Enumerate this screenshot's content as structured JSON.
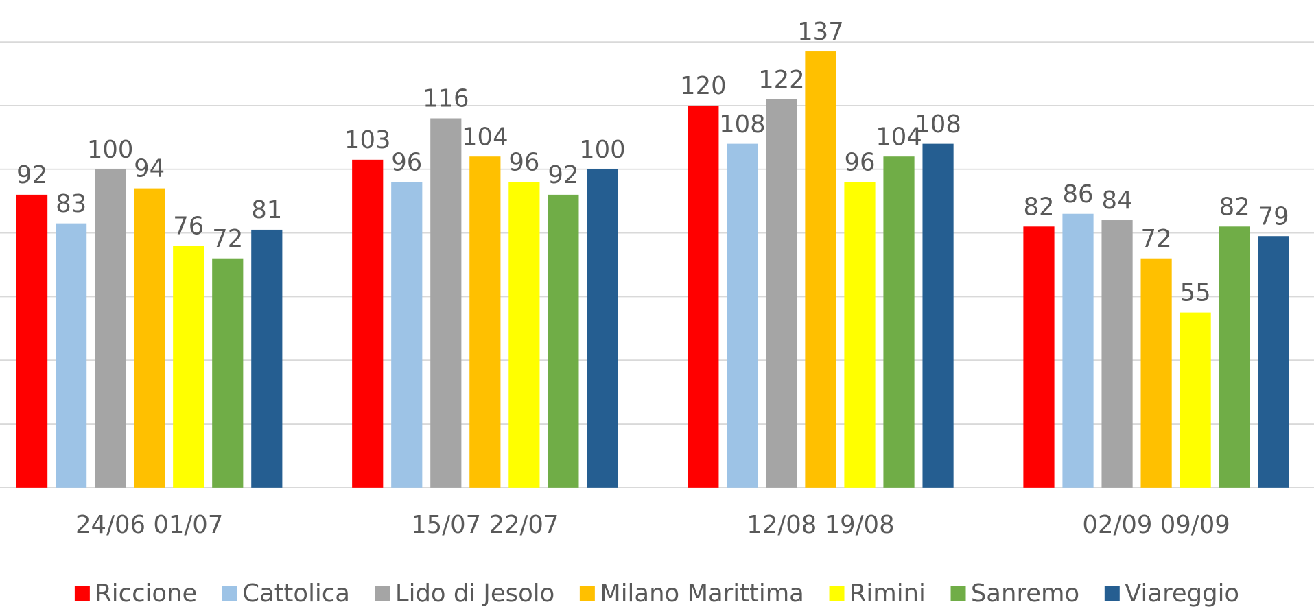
{
  "chart_data": {
    "type": "bar",
    "categories": [
      "24/06 01/07",
      "15/07 22/07",
      "12/08 19/08",
      "02/09 09/09"
    ],
    "series": [
      {
        "name": "Riccione",
        "color": "#ff0000",
        "values": [
          92,
          103,
          120,
          82
        ]
      },
      {
        "name": "Cattolica",
        "color": "#9dc3e6",
        "values": [
          83,
          96,
          108,
          86
        ]
      },
      {
        "name": "Lido di Jesolo",
        "color": "#a5a5a5",
        "values": [
          100,
          116,
          122,
          84
        ]
      },
      {
        "name": "Milano Marittima",
        "color": "#ffc000",
        "values": [
          94,
          104,
          137,
          72
        ]
      },
      {
        "name": "Rimini",
        "color": "#ffff00",
        "values": [
          76,
          96,
          96,
          55
        ]
      },
      {
        "name": "Sanremo",
        "color": "#70ad47",
        "values": [
          72,
          92,
          104,
          82
        ]
      },
      {
        "name": "Viareggio",
        "color": "#255e91",
        "values": [
          81,
          100,
          108,
          79
        ]
      }
    ],
    "ylim": [
      0,
      140
    ],
    "yticks": [
      0,
      20,
      40,
      60,
      80,
      100,
      120,
      140
    ],
    "grid": true,
    "legend": "bottom"
  }
}
